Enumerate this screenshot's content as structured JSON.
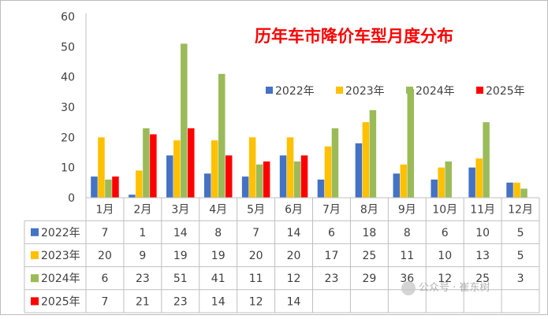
{
  "chart_data": {
    "type": "bar",
    "title": "历年车市降价车型月度分布",
    "categories": [
      "1月",
      "2月",
      "3月",
      "4月",
      "5月",
      "6月",
      "7月",
      "8月",
      "9月",
      "10月",
      "11月",
      "12月"
    ],
    "ylim": [
      0,
      60
    ],
    "yticks": [
      0,
      10,
      20,
      30,
      40,
      50,
      60
    ],
    "grid": false,
    "legend": "top-right",
    "series": [
      {
        "name": "2022年",
        "color": "#4472c4",
        "values": [
          7,
          1,
          14,
          8,
          7,
          14,
          6,
          18,
          8,
          6,
          10,
          5
        ]
      },
      {
        "name": "2023年",
        "color": "#ffc000",
        "values": [
          20,
          9,
          19,
          19,
          20,
          20,
          17,
          25,
          11,
          10,
          13,
          5
        ]
      },
      {
        "name": "2024年",
        "color": "#9bbb59",
        "values": [
          6,
          23,
          51,
          41,
          11,
          12,
          23,
          29,
          36,
          12,
          25,
          3
        ]
      },
      {
        "name": "2025年",
        "color": "#ff0000",
        "values": [
          7,
          21,
          23,
          14,
          12,
          14,
          null,
          null,
          null,
          null,
          null,
          null
        ]
      }
    ]
  },
  "watermark": {
    "text": "公众号 · 崔东树"
  }
}
